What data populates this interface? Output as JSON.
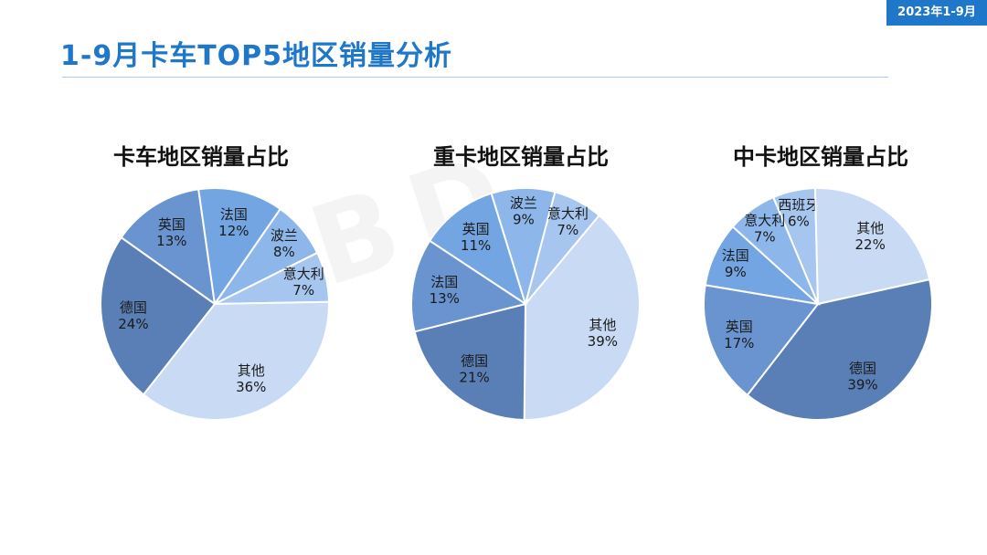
{
  "header": {
    "badge": "2023年1-9月",
    "title": "1-9月卡车TOP5地区销量分析"
  },
  "watermark": "BD",
  "chart_data": [
    {
      "type": "pie",
      "title": "卡车地区销量占比",
      "slices": [
        {
          "label": "英国",
          "value": 13,
          "color": "#6a94cf"
        },
        {
          "label": "法国",
          "value": 12,
          "color": "#74a5e3"
        },
        {
          "label": "波兰",
          "value": 8,
          "color": "#8db7ea"
        },
        {
          "label": "意大利",
          "value": 7,
          "color": "#a6c6f0"
        },
        {
          "label": "其他",
          "value": 36,
          "color": "#c8daf4"
        },
        {
          "label": "德国",
          "value": 24,
          "color": "#5a7fb6"
        }
      ]
    },
    {
      "type": "pie",
      "title": "重卡地区销量占比",
      "slices": [
        {
          "label": "英国",
          "value": 11,
          "color": "#74a5e3"
        },
        {
          "label": "波兰",
          "value": 9,
          "color": "#8db7ea"
        },
        {
          "label": "意大利",
          "value": 7,
          "color": "#a6c6f0"
        },
        {
          "label": "其他",
          "value": 39,
          "color": "#c8daf4"
        },
        {
          "label": "德国",
          "value": 21,
          "color": "#5a7fb6"
        },
        {
          "label": "法国",
          "value": 13,
          "color": "#6a94cf"
        }
      ]
    },
    {
      "type": "pie",
      "title": "中卡地区销量占比",
      "slices": [
        {
          "label": "西班牙",
          "value": 6,
          "color": "#a6c6f0"
        },
        {
          "label": "其他",
          "value": 22,
          "color": "#c8daf4"
        },
        {
          "label": "德国",
          "value": 39,
          "color": "#5a7fb6"
        },
        {
          "label": "英国",
          "value": 17,
          "color": "#6a94cf"
        },
        {
          "label": "法国",
          "value": 9,
          "color": "#74a5e3"
        },
        {
          "label": "意大利",
          "value": 7,
          "color": "#8db7ea"
        }
      ]
    }
  ]
}
